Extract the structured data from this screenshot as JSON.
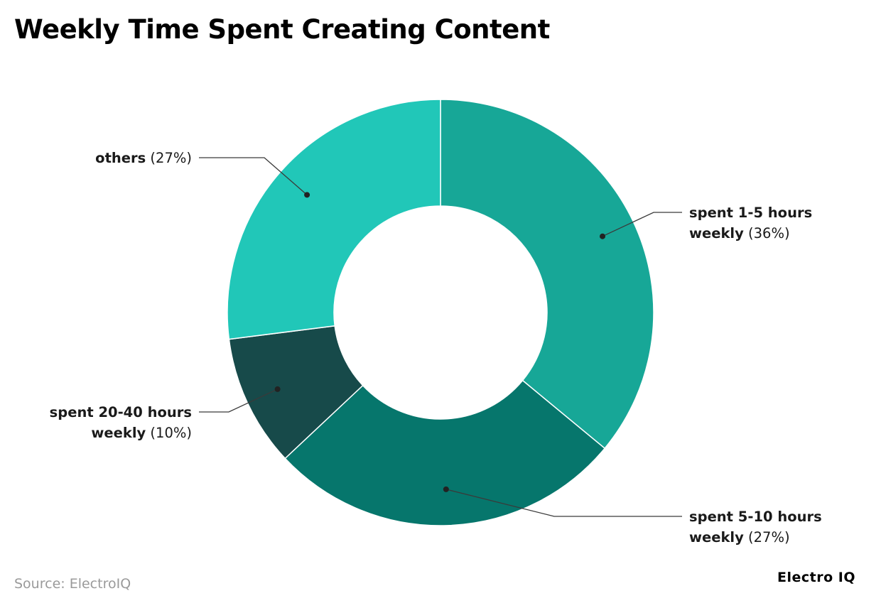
{
  "chart_data": {
    "type": "pie",
    "title": "Weekly Time Spent Creating Content",
    "donut": true,
    "categories": [
      "spent 1-5 hours weekly",
      "spent 5-10 hours weekly",
      "spent 20-40 hours weekly",
      "others"
    ],
    "values": [
      36,
      27,
      10,
      27
    ],
    "value_labels": [
      "(36%)",
      "(27%)",
      "(10%)",
      "(27%)"
    ],
    "colors": [
      "#17a797",
      "#06766c",
      "#174a4a",
      "#21c7b8"
    ],
    "legend": "none",
    "label_lines": [
      [
        "spent 1-5 hours",
        "weekly"
      ],
      [
        "spent 5-10 hours",
        "weekly"
      ],
      [
        "spent 20-40 hours",
        "weekly"
      ],
      [
        "others"
      ]
    ]
  },
  "footer": {
    "source": "Source: ElectroIQ",
    "brand": "Electro IQ"
  }
}
